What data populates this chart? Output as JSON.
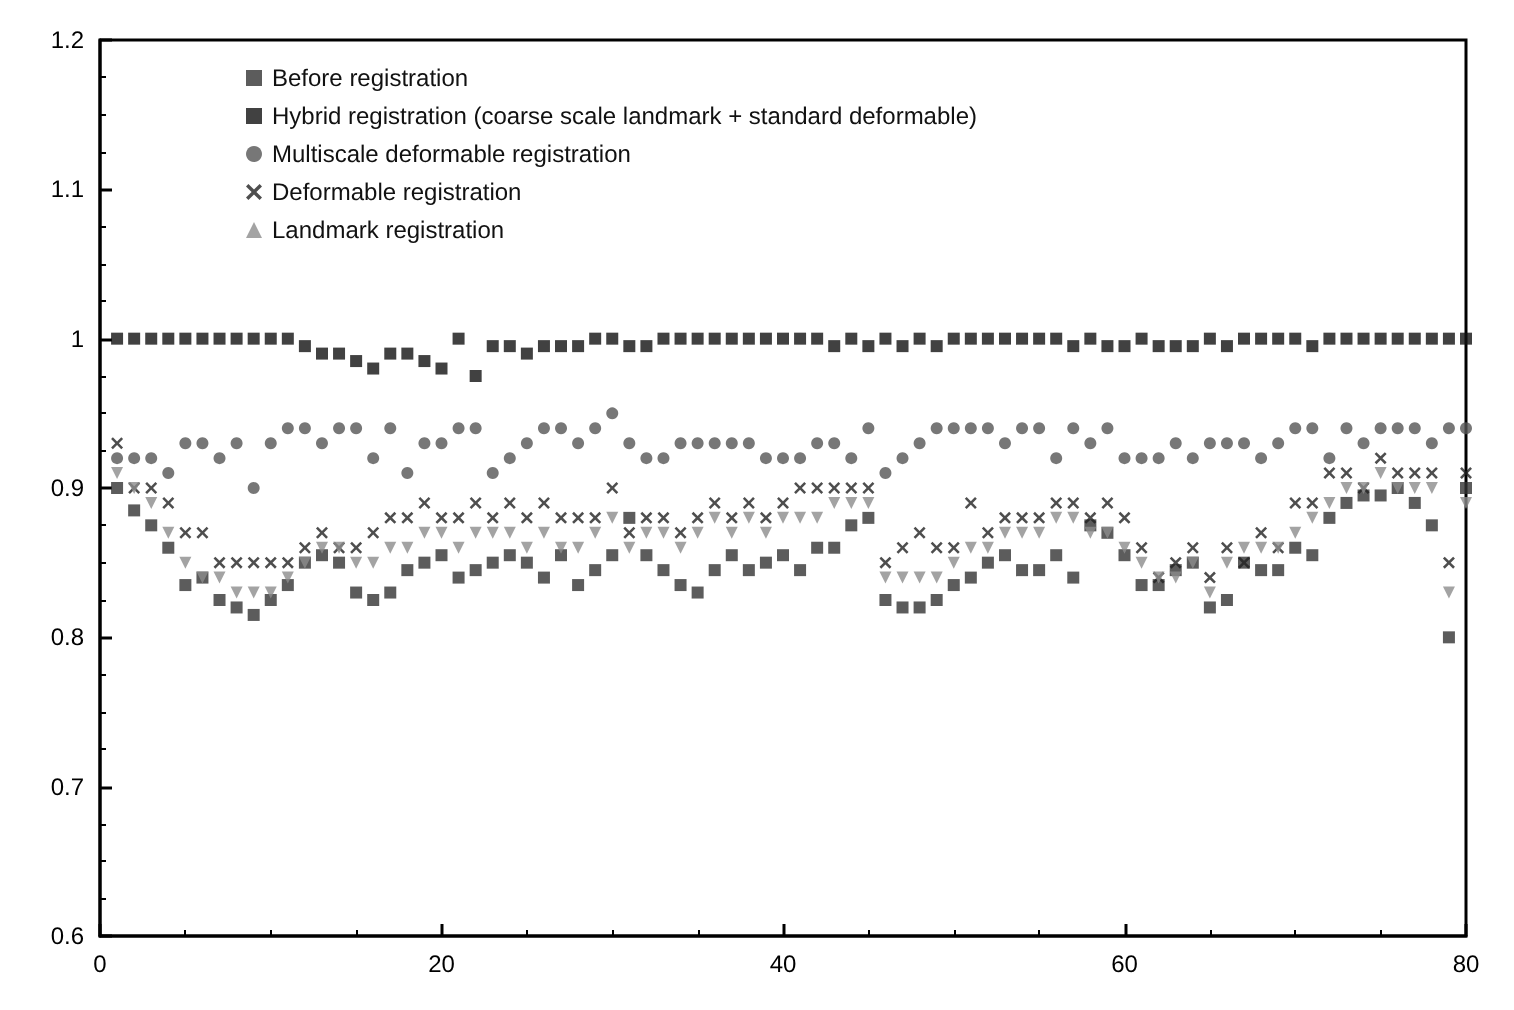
{
  "chart_data": {
    "type": "scatter",
    "x": [
      1,
      2,
      3,
      4,
      5,
      6,
      7,
      8,
      9,
      10,
      11,
      12,
      13,
      14,
      15,
      16,
      17,
      18,
      19,
      20,
      21,
      22,
      23,
      24,
      25,
      26,
      27,
      28,
      29,
      30,
      31,
      32,
      33,
      34,
      35,
      36,
      37,
      38,
      39,
      40,
      41,
      42,
      43,
      44,
      45,
      46,
      47,
      48,
      49,
      50,
      51,
      52,
      53,
      54,
      55,
      56,
      57,
      58,
      59,
      60,
      61,
      62,
      63,
      64,
      65,
      66,
      67,
      68,
      69,
      70,
      71,
      72,
      73,
      74,
      75,
      76,
      77,
      78,
      79,
      80
    ],
    "xlim": [
      0,
      80
    ],
    "xticks": [
      0,
      20,
      40,
      60,
      80
    ],
    "ylim": [
      0.6,
      1.2
    ],
    "yticks": [
      0.6,
      0.7,
      0.8,
      0.9,
      1,
      1.1,
      1.2
    ],
    "grid": false,
    "legend": "top left",
    "series": [
      {
        "name": "Before registration",
        "color": "#333333",
        "marker": "square",
        "values": [
          0.9,
          0.885,
          0.875,
          0.86,
          0.835,
          0.84,
          0.825,
          0.82,
          0.815,
          0.825,
          0.835,
          0.85,
          0.855,
          0.85,
          0.83,
          0.825,
          0.83,
          0.845,
          0.85,
          0.855,
          0.84,
          0.845,
          0.85,
          0.855,
          0.85,
          0.84,
          0.855,
          0.835,
          0.845,
          0.855,
          0.88,
          0.855,
          0.845,
          0.835,
          0.83,
          0.845,
          0.855,
          0.845,
          0.85,
          0.855,
          0.845,
          0.86,
          0.86,
          0.875,
          0.88,
          0.825,
          0.82,
          0.82,
          0.825,
          0.835,
          0.84,
          0.85,
          0.855,
          0.845,
          0.845,
          0.855,
          0.84,
          0.875,
          0.87,
          0.855,
          0.835,
          0.835,
          0.845,
          0.85,
          0.82,
          0.825,
          0.85,
          0.845,
          0.845,
          0.86,
          0.855,
          0.88,
          0.89,
          0.895,
          0.895,
          0.9,
          0.89,
          0.875,
          0.8,
          0.9
        ]
      },
      {
        "name": "Hybrid registration (coarse scale landmark + standard deformable)",
        "color": "#111111",
        "marker": "square",
        "values": [
          1,
          1,
          1,
          1,
          1,
          1,
          1,
          1,
          1,
          1,
          1,
          0.995,
          0.99,
          0.99,
          0.985,
          0.98,
          0.99,
          0.99,
          0.985,
          0.98,
          1,
          0.975,
          0.995,
          0.995,
          0.99,
          0.995,
          0.995,
          0.995,
          1,
          1,
          0.995,
          0.995,
          1,
          1,
          1,
          1,
          1,
          1,
          1,
          1,
          1,
          1,
          0.995,
          1,
          0.995,
          1,
          0.995,
          1,
          0.995,
          1,
          1,
          1,
          1,
          1,
          1,
          1,
          0.995,
          1,
          0.995,
          0.995,
          1,
          0.995,
          0.995,
          0.995,
          1,
          0.995,
          1,
          1,
          1,
          1,
          0.995,
          1,
          1,
          1,
          1,
          1,
          1,
          1,
          1,
          1
        ]
      },
      {
        "name": "Multiscale deformable registration",
        "color": "#555555",
        "marker": "circle",
        "values": [
          0.92,
          0.92,
          0.92,
          0.91,
          0.93,
          0.93,
          0.92,
          0.93,
          0.9,
          0.93,
          0.94,
          0.94,
          0.93,
          0.94,
          0.94,
          0.92,
          0.94,
          0.91,
          0.93,
          0.93,
          0.94,
          0.94,
          0.91,
          0.92,
          0.93,
          0.94,
          0.94,
          0.93,
          0.94,
          0.95,
          0.93,
          0.92,
          0.92,
          0.93,
          0.93,
          0.93,
          0.93,
          0.93,
          0.92,
          0.92,
          0.92,
          0.93,
          0.93,
          0.92,
          0.94,
          0.91,
          0.92,
          0.93,
          0.94,
          0.94,
          0.94,
          0.94,
          0.93,
          0.94,
          0.94,
          0.92,
          0.94,
          0.93,
          0.94,
          0.92,
          0.92,
          0.92,
          0.93,
          0.92,
          0.93,
          0.93,
          0.93,
          0.92,
          0.93,
          0.94,
          0.94,
          0.92,
          0.94,
          0.93,
          0.94,
          0.94,
          0.94,
          0.93,
          0.94,
          0.94
        ]
      },
      {
        "name": "Deformable registration",
        "color": "#222222",
        "marker": "cross",
        "values": [
          0.93,
          0.9,
          0.9,
          0.89,
          0.87,
          0.87,
          0.85,
          0.85,
          0.85,
          0.85,
          0.85,
          0.86,
          0.87,
          0.86,
          0.86,
          0.87,
          0.88,
          0.88,
          0.89,
          0.88,
          0.88,
          0.89,
          0.88,
          0.89,
          0.88,
          0.89,
          0.88,
          0.88,
          0.88,
          0.9,
          0.87,
          0.88,
          0.88,
          0.87,
          0.88,
          0.89,
          0.88,
          0.89,
          0.88,
          0.89,
          0.9,
          0.9,
          0.9,
          0.9,
          0.9,
          0.85,
          0.86,
          0.87,
          0.86,
          0.86,
          0.89,
          0.87,
          0.88,
          0.88,
          0.88,
          0.89,
          0.89,
          0.88,
          0.89,
          0.88,
          0.86,
          0.84,
          0.85,
          0.86,
          0.84,
          0.86,
          0.85,
          0.87,
          0.86,
          0.89,
          0.89,
          0.91,
          0.91,
          0.9,
          0.92,
          0.91,
          0.91,
          0.91,
          0.85,
          0.91
        ]
      },
      {
        "name": "Landmark registration",
        "color": "#8c8c8c",
        "marker": "triangle",
        "values": [
          0.91,
          0.9,
          0.89,
          0.87,
          0.85,
          0.84,
          0.84,
          0.83,
          0.83,
          0.83,
          0.84,
          0.85,
          0.86,
          0.86,
          0.85,
          0.85,
          0.86,
          0.86,
          0.87,
          0.87,
          0.86,
          0.87,
          0.87,
          0.87,
          0.86,
          0.87,
          0.86,
          0.86,
          0.87,
          0.88,
          0.86,
          0.87,
          0.87,
          0.86,
          0.87,
          0.88,
          0.87,
          0.88,
          0.87,
          0.88,
          0.88,
          0.88,
          0.89,
          0.89,
          0.89,
          0.84,
          0.84,
          0.84,
          0.84,
          0.85,
          0.86,
          0.86,
          0.87,
          0.87,
          0.87,
          0.88,
          0.88,
          0.87,
          0.87,
          0.86,
          0.85,
          0.84,
          0.84,
          0.85,
          0.83,
          0.85,
          0.86,
          0.86,
          0.86,
          0.87,
          0.88,
          0.89,
          0.9,
          0.9,
          0.91,
          0.9,
          0.9,
          0.9,
          0.83,
          0.89
        ]
      }
    ]
  }
}
